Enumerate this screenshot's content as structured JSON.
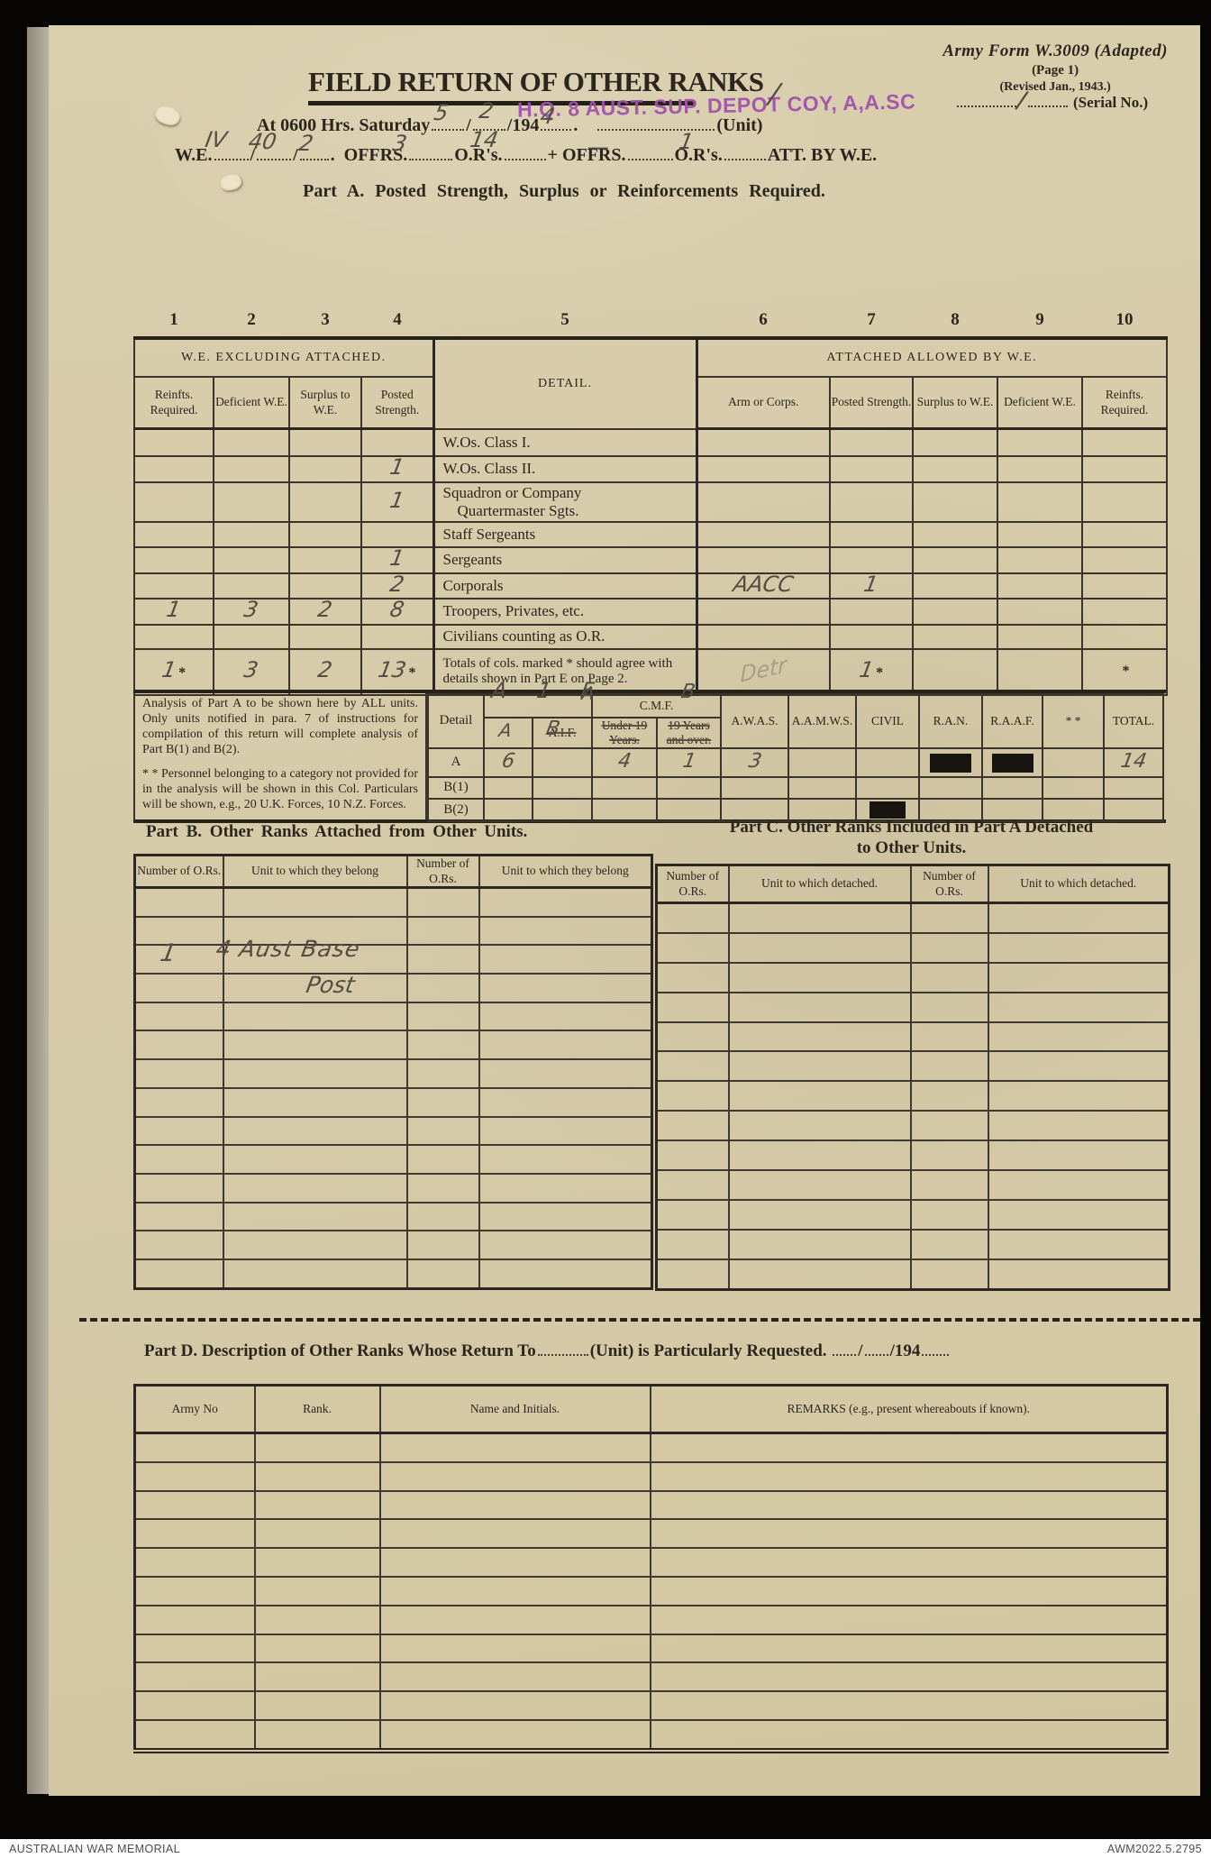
{
  "form": {
    "form_ref": "Army Form W.3009 (Adapted)",
    "page_ref": "(Page 1)",
    "revised": "(Revised Jan., 1943.)",
    "serial_label": "(Serial No.)",
    "serial_slash": "/",
    "title": "FIELD RETURN OF OTHER RANKS",
    "stamp": "H.Q. 8 AUST. SUP. DEPOT COY, A,A.SC",
    "stamp_slash": "/",
    "datetime_prefix": "At 0600 Hrs. Saturday",
    "date_day": "5",
    "date_sep1": "/",
    "date_month": "2",
    "date_sep2": "/194",
    "date_year_suffix": "4",
    "period": ".",
    "unit_label": "(Unit)",
    "we_label": "W.E.",
    "we_value1": "IV",
    "we_slash1": "/",
    "we_value2": "40",
    "we_slash2": "/",
    "we_value3": "2",
    "we_period": ".",
    "offrs_label": "OFFRS.",
    "offrs_value": "3",
    "ors_label": "O.R's.",
    "ors_value": "14",
    "plus_offrs_label": "+ OFFRS.",
    "att_offrs_value": "—",
    "ors2_label": "O.R's.",
    "att_ors_value": "1",
    "att_label": "ATT. BY W.E."
  },
  "part_a": {
    "heading": "Part A.  Posted Strength, Surplus or Reinforcements Required.",
    "col_numbers": [
      "1",
      "2",
      "3",
      "4",
      "5",
      "6",
      "7",
      "8",
      "9",
      "10"
    ],
    "left_group": "W.E. EXCLUDING ATTACHED.",
    "right_group": "ATTACHED ALLOWED BY W.E.",
    "detail_header": "DETAIL.",
    "left_cols": [
      "Reinfts. Required.",
      "Deficient W.E.",
      "Surplus to W.E.",
      "Posted Strength."
    ],
    "right_cols": [
      "Arm or Corps.",
      "Posted Strength.",
      "Surplus to W.E.",
      "Deficient W.E.",
      "Reinfts. Required."
    ],
    "rows": [
      {
        "detail": "W.Os. Class I.",
        "values": {}
      },
      {
        "detail": "W.Os. Class II.",
        "values": {
          "c4": "1"
        }
      },
      {
        "detail": "Squadron or Company|Quartermaster Sgts.",
        "values": {
          "c4": "1"
        }
      },
      {
        "detail": "Staff Sergeants",
        "values": {}
      },
      {
        "detail": "Sergeants",
        "values": {
          "c4": "1"
        }
      },
      {
        "detail": "Corporals",
        "values": {
          "c4": "2",
          "c6": "AACC",
          "c7": "1"
        }
      },
      {
        "detail": "Troopers, Privates, etc.",
        "values": {
          "c1": "1",
          "c2": "3",
          "c3": "2",
          "c4": "8"
        }
      },
      {
        "detail": "Civilians counting as O.R.",
        "values": {}
      },
      {
        "detail": "Totals of cols. marked * should agree with details shown in Part E on Page 2.",
        "totals": true,
        "values": {
          "c1": {
            "v": "1",
            "star": true
          },
          "c2": "3",
          "c3": "2",
          "c4": {
            "v": "13",
            "star": true
          },
          "c6": {
            "v": "Detr",
            "faint": true
          },
          "c7": {
            "v": "1",
            "star": true
          },
          "c10": {
            "v": "",
            "star": true
          }
        }
      }
    ]
  },
  "analysis": {
    "note1": "Analysis of Part A to be shown here by ALL units.  Only units notified in para. 7 of instructions for compilation of this return will complete analysis of Part B(1) and B(2).",
    "note2": "* * Personnel belonging to a category not provided for in the analysis will be shown in this Col.  Particulars will be shown, e.g., 20 U.K. Forces, 10 N.Z. Forces.",
    "detail_label": "Detail",
    "cmf_label": "C.M.F.",
    "aif_label": "A.I.F.",
    "under19_label": "Under 19 Years.",
    "over19_label": "19 Years and over.",
    "col_headers": [
      "A.W.A.S.",
      "A.A.M.W.S.",
      "CIVIL",
      "R.A.N.",
      "R.A.A.F.",
      "* *",
      "TOTAL."
    ],
    "hand_top": "A 1 F",
    "hand_a_before_cmf": "A",
    "hand_b_after_cmf": "B",
    "hand_a_cell": "A",
    "hand_b_cell": "B",
    "rows": [
      {
        "label": "A",
        "cells": {
          "c1": "6",
          "c3": "4",
          "c4": "1",
          "awas": "3",
          "ran": "redact",
          "raaf": "redact",
          "total": "14"
        }
      },
      {
        "label": "B(1)",
        "cells": {}
      },
      {
        "label": "B(2)",
        "cells": {
          "civil": "redact-small"
        }
      }
    ]
  },
  "part_b": {
    "heading": "Part B.  Other Ranks Attached from Other Units.",
    "col_headers": [
      "Number of O.Rs.",
      "Unit to which they belong",
      "Number of O.Rs.",
      "Unit to which they belong"
    ],
    "entry_number": "1",
    "entry_unit_line1": "4 Aust Base",
    "entry_unit_line2": "Post",
    "empty_rows": 14
  },
  "part_c": {
    "heading_line1": "Part C.  Other Ranks Included in Part A Detached",
    "heading_line2": "to Other Units.",
    "col_headers": [
      "Number of O.Rs.",
      "Unit to which detached.",
      "Number of O.Rs.",
      "Unit to which detached."
    ],
    "empty_rows": 13
  },
  "part_d": {
    "heading_pre": "Part D.  Description of Other Ranks Whose Return To",
    "heading_post": "(Unit) is Particularly Requested.",
    "heading_slash": "/",
    "heading_year": "/194",
    "col_headers": [
      "Army No",
      "Rank.",
      "Name and Initials.",
      "REMARKS  (e.g.,  present  whereabouts  if  known)."
    ],
    "empty_rows": 11
  },
  "footer": {
    "left": "AUSTRALIAN WAR MEMORIAL",
    "right": "AWM2022.5.2795"
  }
}
